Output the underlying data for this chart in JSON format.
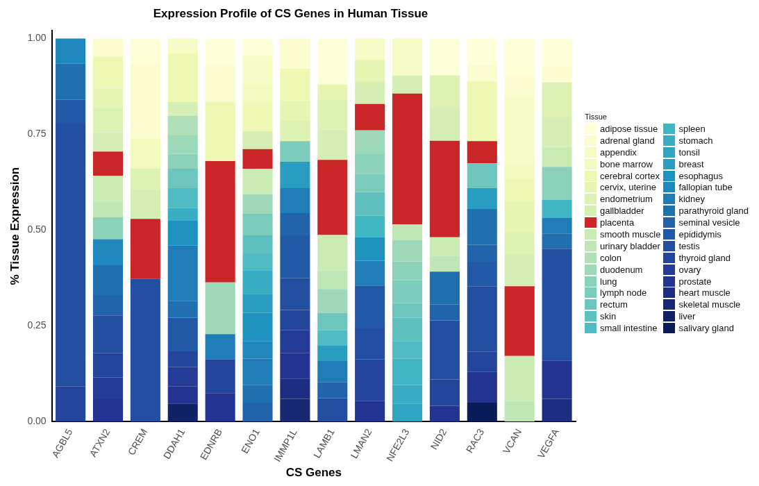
{
  "chart_data": {
    "type": "bar",
    "title": "Expression Profile of CS Genes in Human Tissue",
    "xlabel": "CS Genes",
    "ylabel": "% Tissue Expression",
    "legend_title": "Tissue",
    "legend": "right",
    "stacked": true,
    "categories": [
      "AGBL5",
      "ATXN2",
      "CREM",
      "DDAH1",
      "EDNRB",
      "ENO1",
      "IMMP1L",
      "LAMB1",
      "LMAN2",
      "NFE2L3",
      "NID2",
      "RAC3",
      "VCAN",
      "VEGFA"
    ],
    "ylim": [
      0,
      1.02
    ],
    "yticks": [
      {
        "value": 0,
        "label": "0.00"
      },
      {
        "value": 0.25,
        "label": "0.25"
      },
      {
        "value": 0.5,
        "label": "0.50"
      },
      {
        "value": 0.75,
        "label": "0.75"
      },
      {
        "value": 1,
        "label": "1.00"
      }
    ],
    "series": [
      {
        "name": "salivary gland",
        "color": "#081d58",
        "values": [
          0,
          0,
          0,
          0,
          0,
          0,
          0,
          0,
          0,
          0,
          0,
          0.049,
          0,
          0
        ]
      },
      {
        "name": "liver",
        "color": "#0f2266",
        "values": [
          0,
          0,
          0,
          0.047,
          0,
          0,
          0,
          0,
          0,
          0,
          0,
          0,
          0,
          0
        ]
      },
      {
        "name": "skeletal muscle",
        "color": "#162874",
        "values": [
          0,
          0,
          0,
          0,
          0,
          0,
          0.059,
          0,
          0,
          0,
          0,
          0,
          0,
          0
        ]
      },
      {
        "name": "heart muscle",
        "color": "#1d2d82",
        "values": [
          0,
          0,
          0,
          0,
          0,
          0,
          0.053,
          0,
          0,
          0,
          0,
          0,
          0,
          0.059
        ]
      },
      {
        "name": "prostate",
        "color": "#233391",
        "values": [
          0,
          0.058,
          0,
          0.044,
          0.074,
          0,
          0.067,
          0,
          0.054,
          0,
          0.041,
          0.081,
          0,
          0.1
        ]
      },
      {
        "name": "ovary",
        "color": "#253b98",
        "values": [
          0,
          0.057,
          0,
          0.051,
          0,
          0,
          0.059,
          0,
          0,
          0,
          0,
          0,
          0,
          0
        ]
      },
      {
        "name": "thyroid gland",
        "color": "#24459c",
        "values": [
          0.092,
          0.064,
          0,
          0.041,
          0.088,
          0,
          0.053,
          0,
          0.109,
          0,
          0.069,
          0.052,
          0,
          0
        ]
      },
      {
        "name": "testis",
        "color": "#234fa1",
        "values": [
          0.686,
          0.098,
          0.372,
          0,
          0,
          0,
          0.083,
          0.061,
          0.08,
          0,
          0.154,
          0.171,
          0,
          0.292
        ]
      },
      {
        "name": "epididymis",
        "color": "#2259a6",
        "values": [
          0.062,
          0,
          0,
          0.088,
          0,
          0,
          0.112,
          0,
          0.112,
          0,
          0,
          0.064,
          0,
          0
        ]
      },
      {
        "name": "seminal vesicle",
        "color": "#2164ab",
        "values": [
          0,
          0.053,
          0,
          0,
          0,
          0.049,
          0.058,
          0.041,
          0,
          0,
          0.041,
          0.044,
          0,
          0
        ]
      },
      {
        "name": "parathyroid gland",
        "color": "#2070b0",
        "values": [
          0.095,
          0.078,
          0,
          0.044,
          0,
          0.046,
          0,
          0,
          0,
          0,
          0.086,
          0.094,
          0,
          0.04
        ]
      },
      {
        "name": "kidney",
        "color": "#1f7cb6",
        "values": [
          0,
          0,
          0,
          0.144,
          0.066,
          0.069,
          0.065,
          0.056,
          0.065,
          0,
          0,
          0,
          0,
          0.041
        ]
      },
      {
        "name": "fallopian tube",
        "color": "#1e88bc",
        "values": [
          0.065,
          0.068,
          0,
          0,
          0,
          0.046,
          0,
          0,
          0,
          0,
          0,
          0,
          0,
          0
        ]
      },
      {
        "name": "esophagus",
        "color": "#1f93c0",
        "values": [
          0,
          0,
          0,
          0.065,
          0,
          0.074,
          0,
          0,
          0.061,
          0,
          0,
          0,
          0,
          0
        ]
      },
      {
        "name": "breast",
        "color": "#289cc1",
        "values": [
          0,
          0,
          0,
          0,
          0,
          0.049,
          0.069,
          0.041,
          0,
          0,
          0,
          0.054,
          0,
          0
        ]
      },
      {
        "name": "tonsil",
        "color": "#30a5c2",
        "values": [
          0,
          0,
          0,
          0,
          0,
          0,
          0,
          0,
          0,
          0.046,
          0,
          0,
          0,
          0
        ]
      },
      {
        "name": "stomach",
        "color": "#39adc3",
        "values": [
          0,
          0,
          0,
          0.033,
          0,
          0.062,
          0,
          0,
          0,
          0.049,
          0,
          0,
          0,
          0
        ]
      },
      {
        "name": "spleen",
        "color": "#41b6c4",
        "values": [
          0,
          0,
          0,
          0,
          0,
          0,
          0,
          0,
          0.056,
          0.069,
          0,
          0,
          0,
          0.047
        ]
      },
      {
        "name": "small intestine",
        "color": "#50bbc2",
        "values": [
          0,
          0,
          0,
          0.052,
          0,
          0.042,
          0,
          0.039,
          0,
          0.046,
          0,
          0,
          0,
          0
        ]
      },
      {
        "name": "skin",
        "color": "#5ec1c0",
        "values": [
          0,
          0,
          0,
          0,
          0,
          0.049,
          0,
          0,
          0.062,
          0.061,
          0,
          0,
          0,
          0
        ]
      },
      {
        "name": "rectum",
        "color": "#6dc6be",
        "values": [
          0,
          0,
          0,
          0.051,
          0,
          0,
          0,
          0.046,
          0,
          0.038,
          0,
          0.065,
          0,
          0
        ]
      },
      {
        "name": "lymph node",
        "color": "#7bccbb",
        "values": [
          0,
          0,
          0,
          0,
          0,
          0.056,
          0.054,
          0,
          0.048,
          0.06,
          0,
          0,
          0,
          0
        ]
      },
      {
        "name": "lung",
        "color": "#8cd2ba",
        "values": [
          0,
          0.057,
          0,
          0.039,
          0,
          0,
          0,
          0,
          0.051,
          0.049,
          0,
          0,
          0,
          0.086
        ]
      },
      {
        "name": "duodenum",
        "color": "#9dd9b8",
        "values": [
          0,
          0,
          0,
          0.048,
          0.135,
          0.052,
          0,
          0.062,
          0.062,
          0.056,
          0,
          0,
          0,
          0
        ]
      },
      {
        "name": "colon",
        "color": "#aedfb6",
        "values": [
          0,
          0,
          0,
          0.051,
          0,
          0,
          0,
          0,
          0,
          0,
          0,
          0,
          0,
          0
        ]
      },
      {
        "name": "urinary bladder",
        "color": "#bfe6b5",
        "values": [
          0,
          0.043,
          0,
          0,
          0,
          0,
          0,
          0.048,
          0,
          0.041,
          0.042,
          0,
          0.053,
          0
        ]
      },
      {
        "name": "smooth muscle",
        "color": "#cbebb4",
        "values": [
          0,
          0.066,
          0,
          0,
          0,
          0.066,
          0,
          0.093,
          0,
          0,
          0.048,
          0,
          0.118,
          0.052
        ]
      },
      {
        "name": "placenta",
        "color": "#cb2627",
        "values": [
          0,
          0.063,
          0.157,
          0,
          0.317,
          0.051,
          0,
          0.196,
          0.069,
          0.341,
          0.252,
          0.058,
          0.182,
          0
        ]
      },
      {
        "name": "gallbladder",
        "color": "#d4eeb3",
        "values": [
          0,
          0.05,
          0.078,
          0.036,
          0,
          0.047,
          0,
          0.079,
          0.059,
          0.047,
          0.088,
          0,
          0.084,
          0.077
        ]
      },
      {
        "name": "endometrium",
        "color": "#ddf2b2",
        "values": [
          0,
          0.066,
          0.053,
          0,
          0,
          0,
          0.053,
          0.078,
          0,
          0,
          0.083,
          0,
          0.056,
          0.091
        ]
      },
      {
        "name": "cervix, uterine",
        "color": "#e6f5b2",
        "values": [
          0,
          0.05,
          0,
          0,
          0,
          0,
          0.053,
          0.04,
          0.056,
          0,
          0,
          0,
          0.082,
          0
        ]
      },
      {
        "name": "cerebral cortex",
        "color": "#eef8b3",
        "values": [
          0,
          0.082,
          0,
          0.127,
          0.155,
          0.074,
          0.083,
          0,
          0,
          0,
          0,
          0.156,
          0.059,
          0
        ]
      },
      {
        "name": "bone marrow",
        "color": "#f2fabd",
        "values": [
          0,
          0,
          0.079,
          0,
          0,
          0.05,
          0,
          0,
          0,
          0,
          0,
          0,
          0.036,
          0
        ]
      },
      {
        "name": "appendix",
        "color": "#f7fcc6",
        "values": [
          0,
          0,
          0,
          0.039,
          0,
          0.073,
          0,
          0,
          0.056,
          0.097,
          0,
          0,
          0.183,
          0
        ]
      },
      {
        "name": "adrenal gland",
        "color": "#fbfdd0",
        "values": [
          0,
          0.047,
          0.195,
          0,
          0.094,
          0,
          0.079,
          0,
          0,
          0,
          0,
          0.043,
          0.053,
          0.043
        ]
      },
      {
        "name": "adipose tissue",
        "color": "#ffffd9",
        "values": [
          0,
          0,
          0.066,
          0,
          0.071,
          0.045,
          0,
          0.12,
          0,
          0,
          0.096,
          0.069,
          0.094,
          0.072
        ]
      }
    ]
  }
}
